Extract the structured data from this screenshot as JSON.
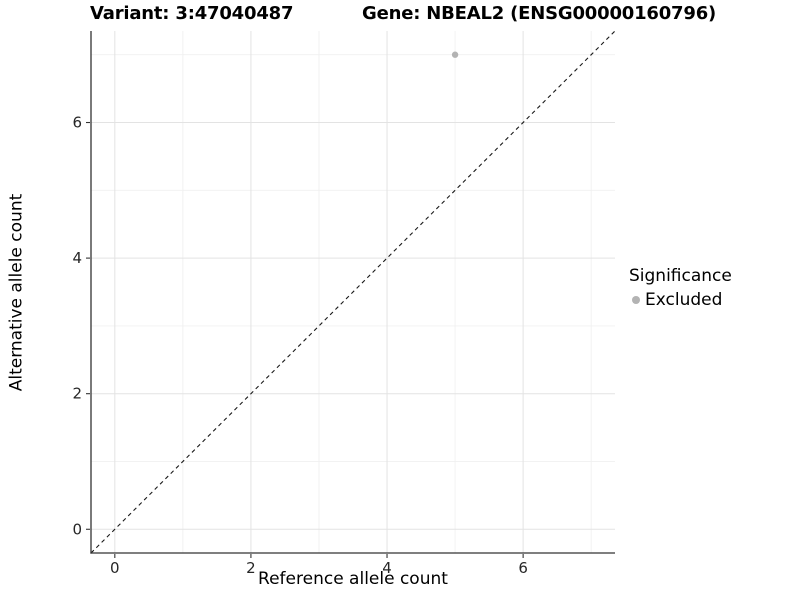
{
  "page": {
    "background": "#ffffff"
  },
  "chart_data": {
    "type": "scatter",
    "title": {
      "left": "Variant: 3:47040487",
      "right": "Gene: NBEAL2 (ENSG00000160796)"
    },
    "xlabel": "Reference allele count",
    "ylabel": "Alternative allele count",
    "xlim": [
      -0.35,
      7.35
    ],
    "ylim": [
      -0.35,
      7.35
    ],
    "xticks": [
      0,
      2,
      4,
      6
    ],
    "yticks": [
      0,
      2,
      4,
      6
    ],
    "x_minor_gridlines": [
      1,
      3,
      5,
      7
    ],
    "y_minor_gridlines": [
      1,
      3,
      5,
      7
    ],
    "grid": true,
    "points": [
      {
        "x": 5,
        "y": 7,
        "series": "Excluded"
      }
    ],
    "reference_line": {
      "kind": "identity",
      "style": "dashed"
    },
    "legend": {
      "title": "Significance",
      "position": "right",
      "items": [
        {
          "label": "Excluded",
          "color": "#b3b3b3"
        }
      ]
    },
    "colors": {
      "point": "#b3b3b3",
      "grid_major": "#e3e3e3",
      "grid_minor": "#f0f0f0",
      "axis_line": "#333333",
      "tick_text": "#262626",
      "reference_line": "#1a1a1a",
      "text": "#000000"
    }
  }
}
